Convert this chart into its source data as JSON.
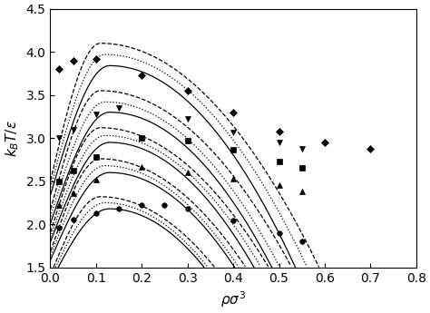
{
  "xlabel": "$\\rho\\sigma^3$",
  "ylabel": "$k_B T/\\varepsilon$",
  "xlim": [
    0.0,
    0.8
  ],
  "ylim": [
    1.5,
    4.5
  ],
  "xticks": [
    0.0,
    0.1,
    0.2,
    0.3,
    0.4,
    0.5,
    0.6,
    0.7,
    0.8
  ],
  "yticks": [
    1.5,
    2.0,
    2.5,
    3.0,
    3.5,
    4.0,
    4.5
  ],
  "figsize": [
    4.74,
    3.45
  ],
  "dpi": 100,
  "curve_sets": [
    {
      "solid": {
        "T_c": 3.84,
        "rho_c": 0.13,
        "sigma_l": 0.13,
        "sigma_r": 0.52
      },
      "dashed": {
        "T_c": 4.1,
        "rho_c": 0.11,
        "sigma_l": 0.11,
        "sigma_r": 0.6
      },
      "dotted": {
        "T_c": 3.97,
        "rho_c": 0.12,
        "sigma_l": 0.12,
        "sigma_r": 0.56
      },
      "marker": "D",
      "ms": 4,
      "pts_x": [
        0.02,
        0.05,
        0.1,
        0.2,
        0.3,
        0.4,
        0.5,
        0.6,
        0.7
      ],
      "pts_y": [
        3.8,
        3.9,
        3.92,
        3.73,
        3.55,
        3.3,
        3.08,
        2.95,
        2.88
      ]
    },
    {
      "solid": {
        "T_c": 3.3,
        "rho_c": 0.13,
        "sigma_l": 0.13,
        "sigma_r": 0.48
      },
      "dashed": {
        "T_c": 3.55,
        "rho_c": 0.11,
        "sigma_l": 0.11,
        "sigma_r": 0.55
      },
      "dotted": {
        "T_c": 3.42,
        "rho_c": 0.12,
        "sigma_l": 0.12,
        "sigma_r": 0.51
      },
      "marker": "v",
      "ms": 5,
      "pts_x": [
        0.02,
        0.05,
        0.1,
        0.15,
        0.3,
        0.4,
        0.5,
        0.55
      ],
      "pts_y": [
        3.0,
        3.1,
        3.28,
        3.35,
        3.22,
        3.07,
        2.95,
        2.88
      ]
    },
    {
      "solid": {
        "T_c": 2.95,
        "rho_c": 0.13,
        "sigma_l": 0.13,
        "sigma_r": 0.45
      },
      "dashed": {
        "T_c": 3.12,
        "rho_c": 0.11,
        "sigma_l": 0.11,
        "sigma_r": 0.51
      },
      "dotted": {
        "T_c": 3.03,
        "rho_c": 0.12,
        "sigma_l": 0.12,
        "sigma_r": 0.48
      },
      "marker": "s",
      "ms": 4,
      "pts_x": [
        0.02,
        0.05,
        0.1,
        0.2,
        0.3,
        0.4,
        0.5,
        0.55
      ],
      "pts_y": [
        2.5,
        2.62,
        2.78,
        3.0,
        2.97,
        2.86,
        2.73,
        2.65
      ]
    },
    {
      "solid": {
        "T_c": 2.6,
        "rho_c": 0.13,
        "sigma_l": 0.13,
        "sigma_r": 0.42
      },
      "dashed": {
        "T_c": 2.76,
        "rho_c": 0.11,
        "sigma_l": 0.11,
        "sigma_r": 0.47
      },
      "dotted": {
        "T_c": 2.68,
        "rho_c": 0.12,
        "sigma_l": 0.12,
        "sigma_r": 0.44
      },
      "marker": "^",
      "ms": 4,
      "pts_x": [
        0.02,
        0.05,
        0.1,
        0.2,
        0.3,
        0.4,
        0.5,
        0.55
      ],
      "pts_y": [
        2.22,
        2.36,
        2.52,
        2.66,
        2.6,
        2.53,
        2.45,
        2.38
      ]
    },
    {
      "solid": {
        "T_c": 2.18,
        "rho_c": 0.13,
        "sigma_l": 0.13,
        "sigma_r": 0.37
      },
      "dashed": {
        "T_c": 2.32,
        "rho_c": 0.11,
        "sigma_l": 0.11,
        "sigma_r": 0.42
      },
      "dotted": {
        "T_c": 2.25,
        "rho_c": 0.12,
        "sigma_l": 0.12,
        "sigma_r": 0.39
      },
      "marker": "o",
      "ms": 4,
      "pts_x": [
        0.02,
        0.05,
        0.1,
        0.15,
        0.2,
        0.25,
        0.3,
        0.4,
        0.5,
        0.55
      ],
      "pts_y": [
        1.96,
        2.05,
        2.13,
        2.18,
        2.22,
        2.22,
        2.18,
        2.04,
        1.9,
        1.8
      ]
    }
  ]
}
